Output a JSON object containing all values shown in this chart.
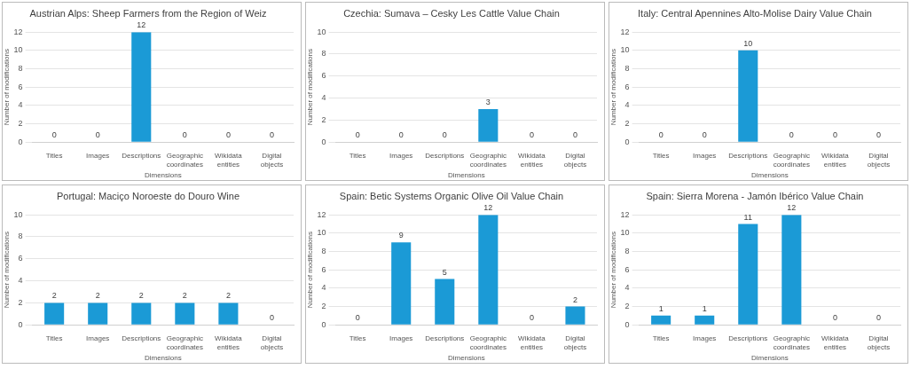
{
  "chart_data": [
    {
      "type": "bar",
      "title": "Austrian Alps: Sheep Farmers from the Region of Weiz",
      "xlabel": "Dimensions",
      "ylabel": "Number of modifications",
      "categories": [
        "Titles",
        "Images",
        "Descriptions",
        "Geographic coordinates",
        "Wikidata entities",
        "Digital objects"
      ],
      "values": [
        0,
        0,
        12,
        0,
        0,
        0
      ],
      "color": "#1b9ad6",
      "ylim": [
        0,
        12
      ],
      "yticks": [
        0,
        2,
        4,
        6,
        8,
        10,
        12
      ],
      "grid": "y",
      "data_labels": true
    },
    {
      "type": "bar",
      "title": "Czechia: Sumava – Cesky Les Cattle Value Chain",
      "xlabel": "Dimensions",
      "ylabel": "Number of modifications",
      "categories": [
        "Titles",
        "Images",
        "Descriptions",
        "Geographic coordinates",
        "Wikidata entities",
        "Digital objects"
      ],
      "values": [
        0,
        0,
        0,
        3,
        0,
        0
      ],
      "color": "#1b9ad6",
      "ylim": [
        0,
        10
      ],
      "yticks": [
        0,
        2,
        4,
        6,
        8,
        10
      ],
      "grid": "y",
      "data_labels": true
    },
    {
      "type": "bar",
      "title": "Italy: Central Apennines Alto-Molise Dairy Value Chain",
      "xlabel": "Dimensions",
      "ylabel": "Number of modifications",
      "categories": [
        "Titles",
        "Images",
        "Descriptions",
        "Geographic coordinates",
        "Wikidata entities",
        "Digital objects"
      ],
      "values": [
        0,
        0,
        10,
        0,
        0,
        0
      ],
      "color": "#1b9ad6",
      "ylim": [
        0,
        12
      ],
      "yticks": [
        0,
        2,
        4,
        6,
        8,
        10,
        12
      ],
      "grid": "y",
      "data_labels": true
    },
    {
      "type": "bar",
      "title": "Portugal: Maciço Noroeste do Douro Wine",
      "xlabel": "Dimensions",
      "ylabel": "Number of modifications",
      "categories": [
        "Titles",
        "Images",
        "Descriptions",
        "Geographic coordinates",
        "Wikidata entities",
        "Digital objects"
      ],
      "values": [
        2,
        2,
        2,
        2,
        2,
        0
      ],
      "color": "#1b9ad6",
      "ylim": [
        0,
        10
      ],
      "yticks": [
        0,
        2,
        4,
        6,
        8,
        10
      ],
      "grid": "y",
      "data_labels": true
    },
    {
      "type": "bar",
      "title": "Spain: Betic Systems Organic Olive Oil Value Chain",
      "xlabel": "Dimensions",
      "ylabel": "Number of modifications",
      "categories": [
        "Titles",
        "Images",
        "Descriptions",
        "Geographic coordinates",
        "Wikidata entities",
        "Digital objects"
      ],
      "values": [
        0,
        9,
        5,
        12,
        0,
        2
      ],
      "color": "#1b9ad6",
      "ylim": [
        0,
        12
      ],
      "yticks": [
        0,
        2,
        4,
        6,
        8,
        10,
        12
      ],
      "grid": "y",
      "data_labels": true
    },
    {
      "type": "bar",
      "title": "Spain: Sierra Morena - Jamón Ibérico Value Chain",
      "xlabel": "Dimensions",
      "ylabel": "Number of modifications",
      "categories": [
        "Titles",
        "Images",
        "Descriptions",
        "Geographic coordinates",
        "Wikidata entities",
        "Digital objects"
      ],
      "values": [
        1,
        1,
        11,
        12,
        0,
        0
      ],
      "color": "#1b9ad6",
      "ylim": [
        0,
        12
      ],
      "yticks": [
        0,
        2,
        4,
        6,
        8,
        10,
        12
      ],
      "grid": "y",
      "data_labels": true
    }
  ]
}
